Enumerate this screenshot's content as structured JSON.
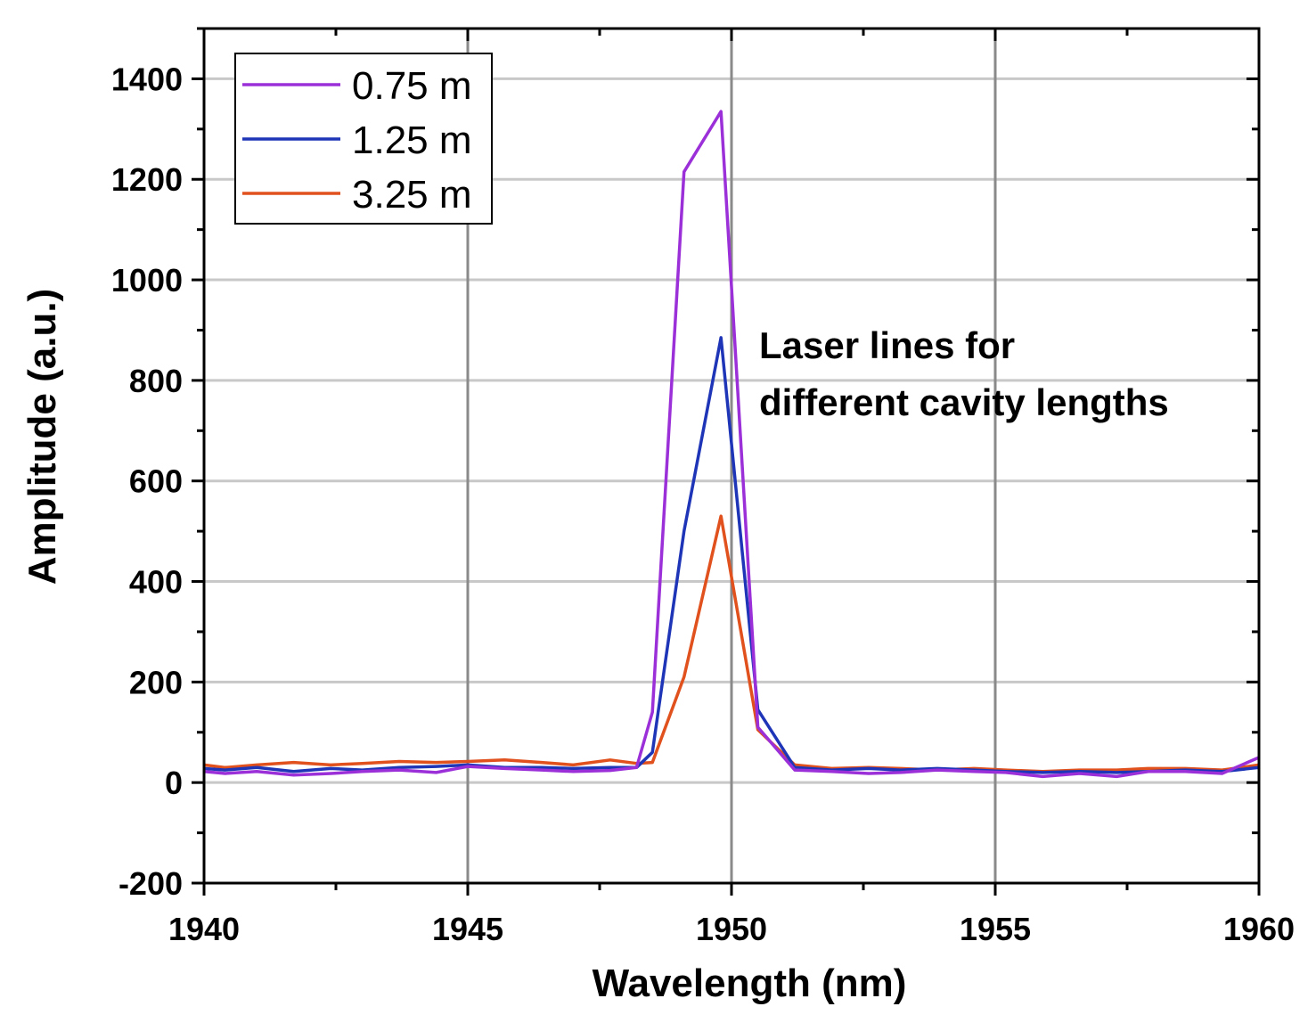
{
  "chart_data": {
    "type": "line",
    "xlabel": "Wavelength (nm)",
    "ylabel": "Amplitude (a.u.)",
    "xlim": [
      1940,
      1960
    ],
    "ylim": [
      -200,
      1500
    ],
    "x_ticks": [
      1940,
      1945,
      1950,
      1955,
      1960
    ],
    "y_ticks": [
      -200,
      0,
      200,
      400,
      600,
      800,
      1000,
      1200,
      1400
    ],
    "grid": true,
    "legend_position": "top-left",
    "annotation": [
      "Laser lines for",
      "different cavity lengths"
    ],
    "x": [
      1940,
      1940.4,
      1941.0,
      1941.7,
      1942.4,
      1943.0,
      1943.7,
      1944.4,
      1945.0,
      1945.7,
      1946.4,
      1947.0,
      1947.7,
      1948.2,
      1948.5,
      1949.1,
      1949.8,
      1950.5,
      1951.2,
      1951.9,
      1952.6,
      1953.2,
      1953.9,
      1954.6,
      1955.2,
      1955.9,
      1956.6,
      1957.3,
      1957.9,
      1958.6,
      1959.3,
      1960
    ],
    "series": [
      {
        "name": "0.75 m",
        "color": "#9b30d9",
        "values": [
          22,
          18,
          22,
          15,
          18,
          22,
          25,
          20,
          32,
          28,
          25,
          22,
          24,
          30,
          140,
          1215,
          1335,
          110,
          25,
          22,
          18,
          20,
          25,
          22,
          20,
          12,
          18,
          12,
          22,
          22,
          18,
          50
        ]
      },
      {
        "name": "1.25 m",
        "color": "#1f35b8",
        "values": [
          28,
          25,
          30,
          22,
          28,
          25,
          30,
          32,
          35,
          30,
          30,
          28,
          30,
          30,
          60,
          500,
          885,
          145,
          30,
          25,
          28,
          25,
          28,
          25,
          22,
          20,
          22,
          20,
          22,
          25,
          22,
          30
        ]
      },
      {
        "name": "3.25 m",
        "color": "#e0511e",
        "values": [
          35,
          30,
          35,
          40,
          35,
          38,
          42,
          40,
          42,
          45,
          40,
          35,
          45,
          38,
          40,
          210,
          530,
          105,
          35,
          28,
          30,
          28,
          25,
          28,
          25,
          22,
          25,
          25,
          28,
          28,
          25,
          35
        ]
      }
    ]
  }
}
